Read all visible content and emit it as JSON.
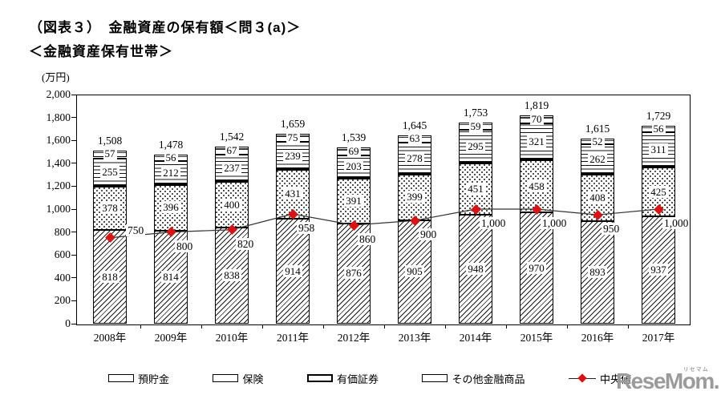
{
  "title": "（図表３）　金融資産の保有額＜問３(a)＞",
  "subtitle": "＜金融資産保有世帯＞",
  "unit_label": "(万円)",
  "watermark": {
    "text": "ReseMom.",
    "ruby": "リセマム",
    "color": "#9b9b9b"
  },
  "chart_data": {
    "type": "bar",
    "subtype": "stacked-bars-with-median-line",
    "title": "金融資産の保有額＜問３(a)＞",
    "subtitle": "金融資産保有世帯",
    "unit": "万円",
    "categories": [
      "2008年",
      "2009年",
      "2010年",
      "2011年",
      "2012年",
      "2013年",
      "2014年",
      "2015年",
      "2016年",
      "2017年"
    ],
    "series": [
      {
        "name": "預貯金",
        "pattern": "diagonal-hatch",
        "values": [
          818,
          814,
          838,
          914,
          876,
          905,
          948,
          970,
          893,
          937
        ]
      },
      {
        "name": "保険",
        "pattern": "dots",
        "values": [
          378,
          396,
          400,
          431,
          391,
          399,
          451,
          458,
          408,
          425
        ]
      },
      {
        "name": "有価証券",
        "pattern": "horizontal-stripes",
        "values": [
          255,
          212,
          237,
          239,
          203,
          278,
          295,
          321,
          262,
          311
        ]
      },
      {
        "name": "その他金融商品",
        "pattern": "plain",
        "values": [
          57,
          56,
          67,
          75,
          69,
          63,
          59,
          70,
          52,
          56
        ]
      }
    ],
    "totals": [
      1508,
      1478,
      1542,
      1659,
      1539,
      1645,
      1753,
      1819,
      1615,
      1729
    ],
    "line_series": {
      "name": "中央値",
      "marker": "diamond",
      "color": "#e01010",
      "values": [
        750,
        800,
        820,
        958,
        860,
        900,
        1000,
        1000,
        950,
        1000
      ]
    },
    "ylim": [
      0,
      2000
    ],
    "ytick_step": 200,
    "ytick_labels": [
      "0",
      "200",
      "400",
      "600",
      "800",
      "1,000",
      "1,200",
      "1,400",
      "1,600",
      "1,800",
      "2,000"
    ],
    "grid": false,
    "legend_position": "bottom",
    "legend": [
      {
        "label": "預貯金",
        "pattern": "diagonal-hatch"
      },
      {
        "label": "保険",
        "pattern": "dots"
      },
      {
        "label": "有価証券",
        "pattern": "thick-border"
      },
      {
        "label": "その他金融商品",
        "pattern": "plain"
      },
      {
        "label": "中央値",
        "pattern": "line-diamond"
      }
    ]
  }
}
